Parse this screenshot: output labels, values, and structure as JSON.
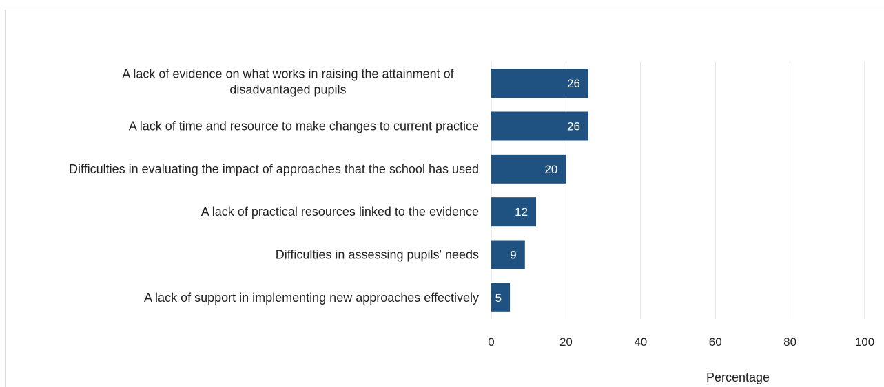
{
  "chart_data": {
    "type": "bar",
    "orientation": "horizontal",
    "categories": [
      [
        "A lack of evidence on what works in raising the attainment of",
        "disadvantaged pupils"
      ],
      [
        "A lack of time and resource to make changes to current practice"
      ],
      [
        "Difficulties in evaluating the impact of approaches that the school has used"
      ],
      [
        "A lack of practical resources linked to the evidence"
      ],
      [
        "Difficulties in assessing pupils' needs"
      ],
      [
        "A lack of support in implementing new approaches effectively"
      ]
    ],
    "values": [
      26,
      26,
      20,
      12,
      9,
      5
    ],
    "xlabel": "Percentage",
    "xlim": [
      0,
      100
    ],
    "xticks": [
      0,
      20,
      40,
      60,
      80,
      100
    ],
    "grid": "vertical",
    "legend": "none",
    "bar_color": "#1f5281",
    "label_color": "#ffffff"
  }
}
